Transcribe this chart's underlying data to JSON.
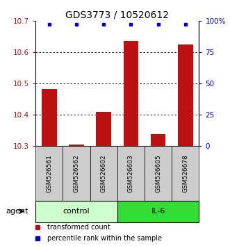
{
  "title": "GDS3773 / 10520612",
  "samples": [
    "GSM526561",
    "GSM526562",
    "GSM526602",
    "GSM526603",
    "GSM526605",
    "GSM526678"
  ],
  "bar_values": [
    10.483,
    10.305,
    10.408,
    10.635,
    10.338,
    10.624
  ],
  "percentile_values": [
    97,
    97,
    97,
    97,
    97,
    97
  ],
  "ylim_left": [
    10.3,
    10.7
  ],
  "ylim_right": [
    0,
    100
  ],
  "yticks_left": [
    10.3,
    10.4,
    10.5,
    10.6,
    10.7
  ],
  "yticks_right": [
    0,
    25,
    50,
    75,
    100
  ],
  "bar_color": "#BB1111",
  "dot_color": "#0000CC",
  "grid_color": "#000000",
  "groups": [
    {
      "label": "control",
      "start": 0,
      "end": 3,
      "color": "#CCFFCC"
    },
    {
      "label": "IL-6",
      "start": 3,
      "end": 6,
      "color": "#33DD33"
    }
  ],
  "agent_label": "agent",
  "legend_bar_label": "transformed count",
  "legend_dot_label": "percentile rank within the sample",
  "background_color": "#ffffff",
  "plot_bg": "#ffffff",
  "title_fontsize": 10,
  "tick_fontsize": 7.5,
  "sample_fontsize": 6.5,
  "group_fontsize": 8,
  "legend_fontsize": 7
}
